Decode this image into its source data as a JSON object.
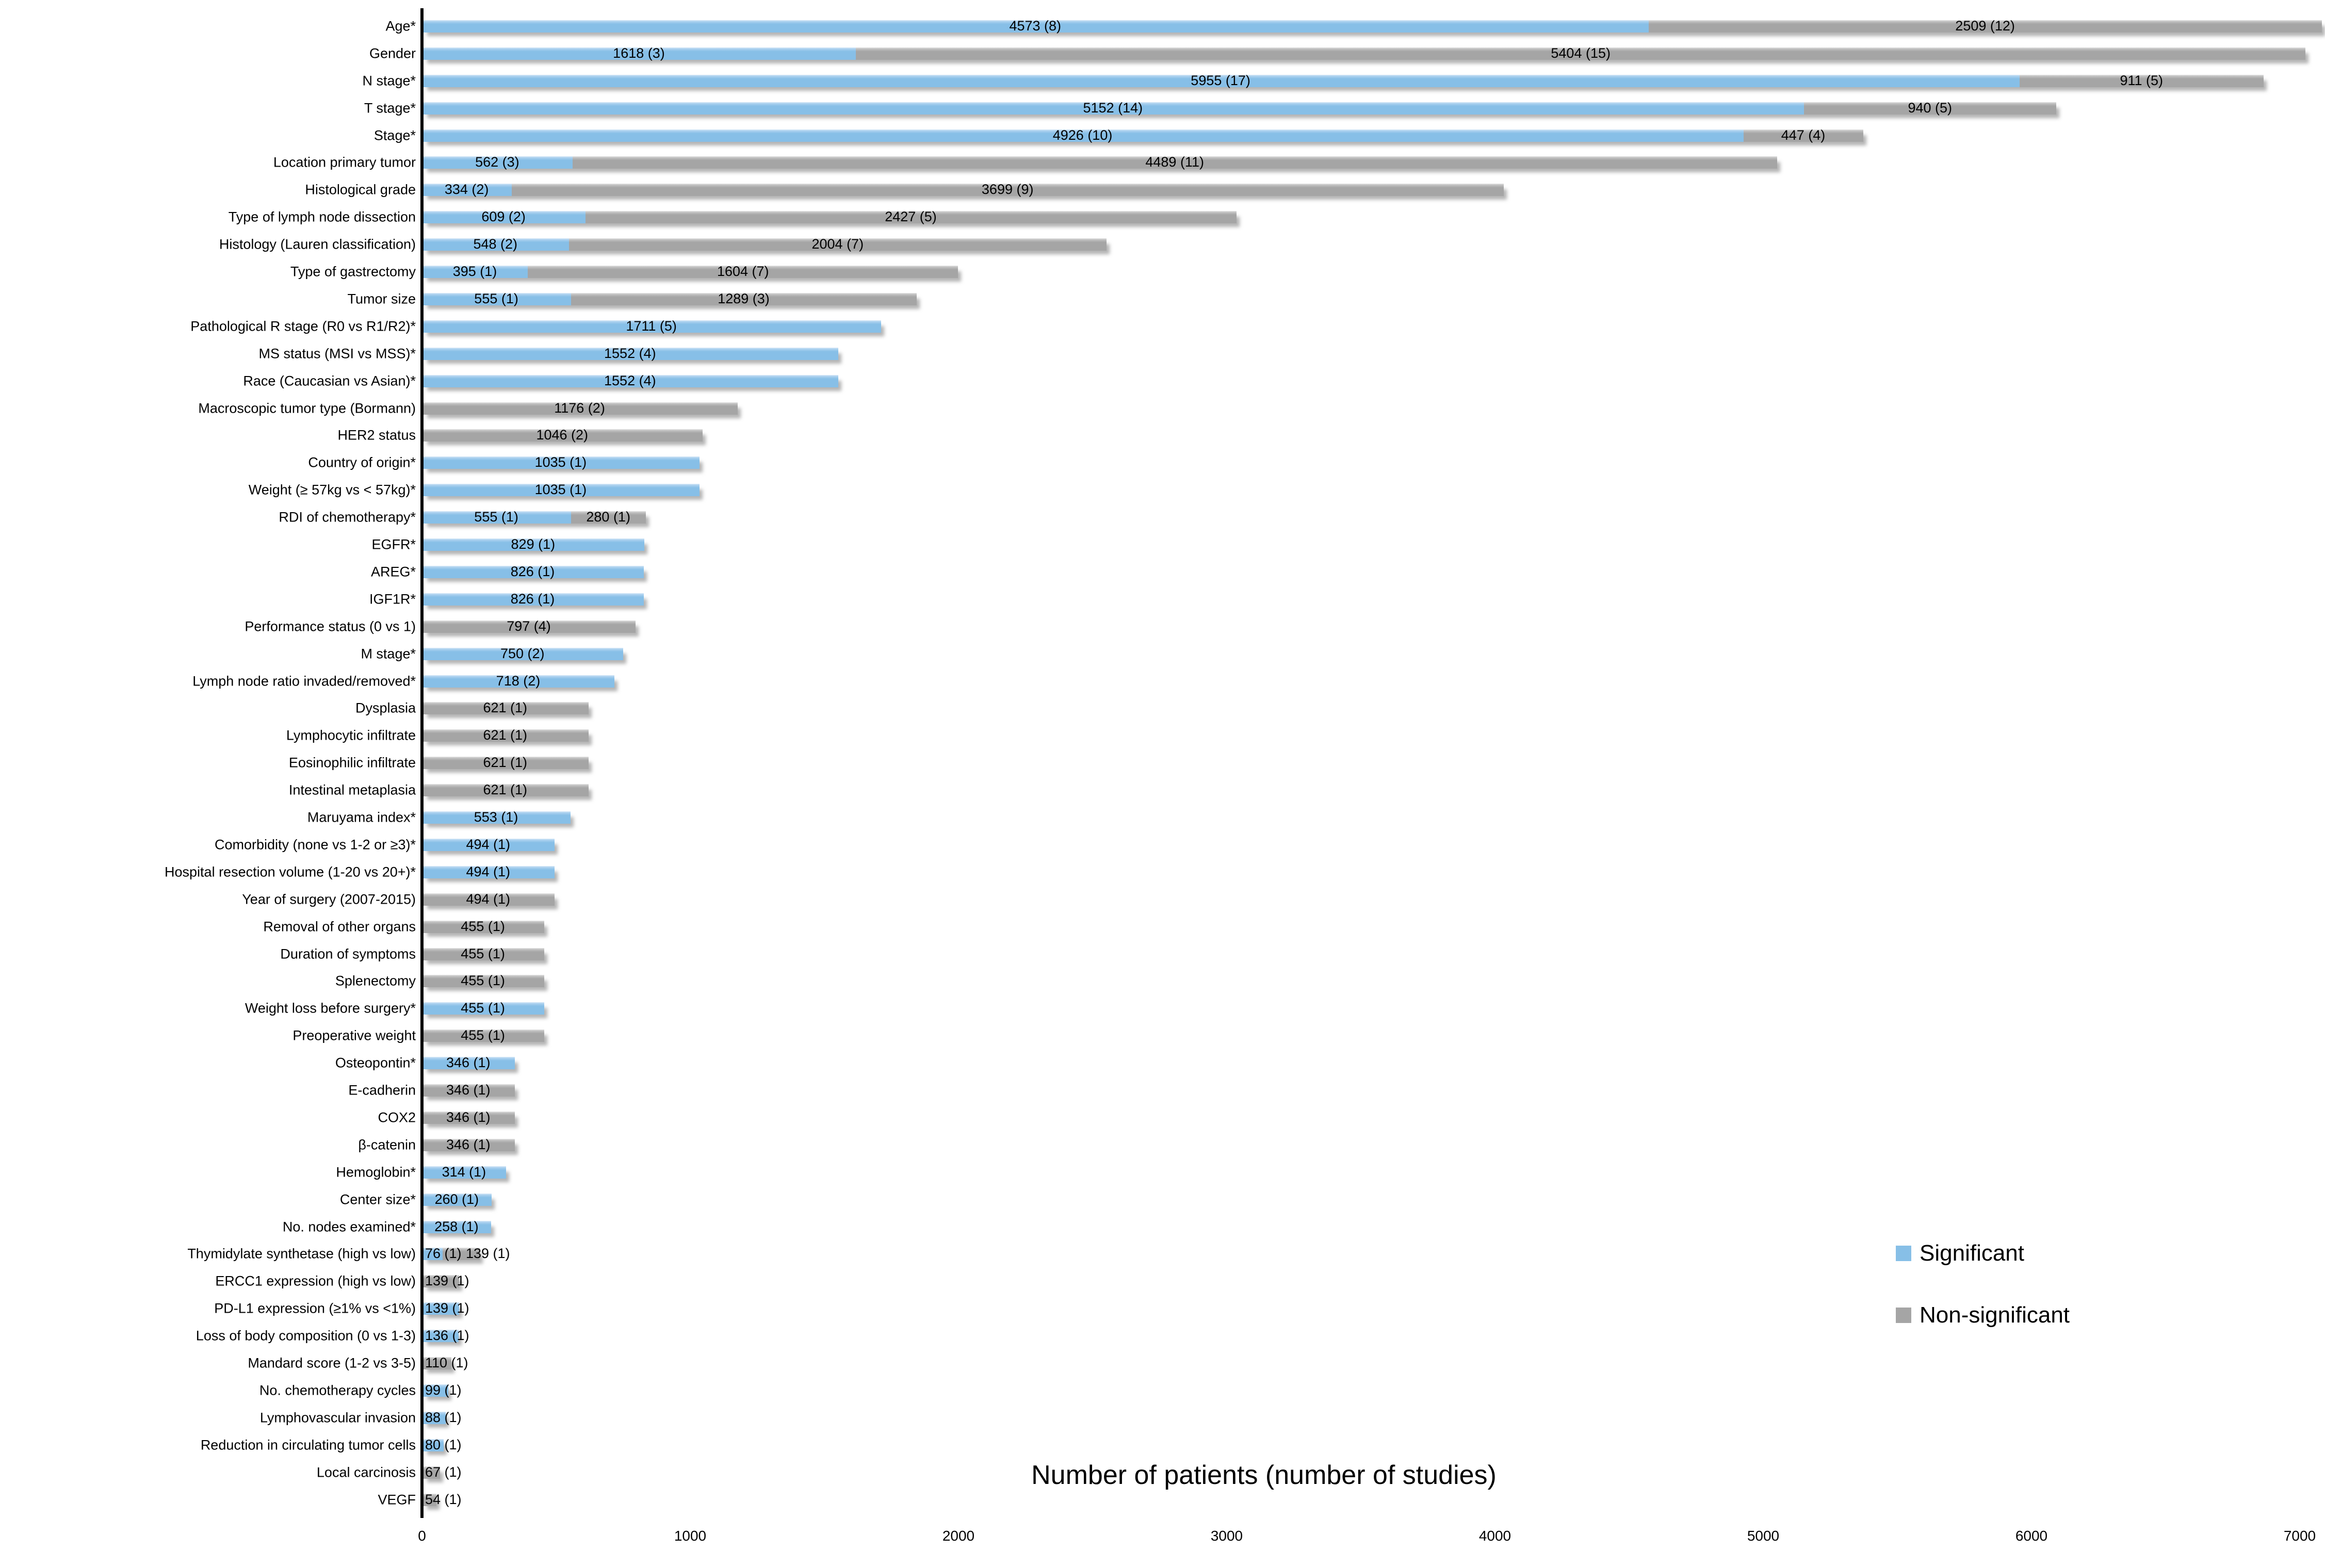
{
  "chart_data": {
    "type": "bar",
    "orientation": "horizontal",
    "stacked": true,
    "title": "",
    "xlabel": "Number of patients (number of studies)",
    "ylabel": "",
    "xlim": [
      0,
      7000
    ],
    "x_ticks": [
      0,
      1000,
      2000,
      3000,
      4000,
      5000,
      6000,
      7000
    ],
    "grid": false,
    "colors": {
      "significant": "#87BFE7",
      "non_significant": "#A5A5A5",
      "axis": "#000000"
    },
    "legend": {
      "position": "right-middle",
      "items": [
        {
          "label": "Significant",
          "color": "#87BFE7"
        },
        {
          "label": "Non-significant",
          "color": "#A5A5A5"
        }
      ]
    },
    "rows": [
      {
        "category": "Age*",
        "segments": [
          {
            "series": "significant",
            "value": 4573,
            "studies": 8,
            "label": "4573 (8)"
          },
          {
            "series": "non_significant",
            "value": 2509,
            "studies": 12,
            "label": "2509 (12)"
          }
        ]
      },
      {
        "category": "Gender",
        "segments": [
          {
            "series": "significant",
            "value": 1618,
            "studies": 3,
            "label": "1618 (3)"
          },
          {
            "series": "non_significant",
            "value": 5404,
            "studies": 15,
            "label": "5404 (15)"
          }
        ]
      },
      {
        "category": "N stage*",
        "segments": [
          {
            "series": "significant",
            "value": 5955,
            "studies": 17,
            "label": "5955 (17)"
          },
          {
            "series": "non_significant",
            "value": 911,
            "studies": 5,
            "label": "911 (5)"
          }
        ]
      },
      {
        "category": "T stage*",
        "segments": [
          {
            "series": "significant",
            "value": 5152,
            "studies": 14,
            "label": "5152 (14)"
          },
          {
            "series": "non_significant",
            "value": 940,
            "studies": 5,
            "label": "940 (5)"
          }
        ]
      },
      {
        "category": "Stage*",
        "segments": [
          {
            "series": "significant",
            "value": 4926,
            "studies": 10,
            "label": "4926 (10)"
          },
          {
            "series": "non_significant",
            "value": 447,
            "studies": 4,
            "label": "447 (4)"
          }
        ]
      },
      {
        "category": "Location primary tumor",
        "segments": [
          {
            "series": "significant",
            "value": 562,
            "studies": 3,
            "label": "562 (3)"
          },
          {
            "series": "non_significant",
            "value": 4489,
            "studies": 11,
            "label": "4489 (11)"
          }
        ]
      },
      {
        "category": "Histological grade",
        "segments": [
          {
            "series": "significant",
            "value": 334,
            "studies": 2,
            "label": "334 (2)"
          },
          {
            "series": "non_significant",
            "value": 3699,
            "studies": 9,
            "label": "3699 (9)"
          }
        ]
      },
      {
        "category": "Type of lymph node dissection",
        "segments": [
          {
            "series": "significant",
            "value": 609,
            "studies": 2,
            "label": "609 (2)"
          },
          {
            "series": "non_significant",
            "value": 2427,
            "studies": 5,
            "label": "2427 (5)"
          }
        ]
      },
      {
        "category": "Histology (Lauren classification)",
        "segments": [
          {
            "series": "significant",
            "value": 548,
            "studies": 2,
            "label": "548 (2)"
          },
          {
            "series": "non_significant",
            "value": 2004,
            "studies": 7,
            "label": "2004 (7)"
          }
        ]
      },
      {
        "category": "Type of gastrectomy",
        "segments": [
          {
            "series": "significant",
            "value": 395,
            "studies": 1,
            "label": "395 (1)"
          },
          {
            "series": "non_significant",
            "value": 1604,
            "studies": 7,
            "label": "1604 (7)"
          }
        ]
      },
      {
        "category": "Tumor size",
        "segments": [
          {
            "series": "significant",
            "value": 555,
            "studies": 1,
            "label": "555 (1)"
          },
          {
            "series": "non_significant",
            "value": 1289,
            "studies": 3,
            "label": "1289 (3)"
          }
        ]
      },
      {
        "category": "Pathological R stage (R0 vs R1/R2)*",
        "segments": [
          {
            "series": "significant",
            "value": 1711,
            "studies": 5,
            "label": "1711 (5)"
          }
        ]
      },
      {
        "category": "MS status (MSI vs MSS)*",
        "segments": [
          {
            "series": "significant",
            "value": 1552,
            "studies": 4,
            "label": "1552 (4)"
          }
        ]
      },
      {
        "category": "Race (Caucasian vs Asian)*",
        "segments": [
          {
            "series": "significant",
            "value": 1552,
            "studies": 4,
            "label": "1552 (4)"
          }
        ]
      },
      {
        "category": "Macroscopic tumor type (Bormann)",
        "segments": [
          {
            "series": "non_significant",
            "value": 1176,
            "studies": 2,
            "label": "1176 (2)"
          }
        ]
      },
      {
        "category": "HER2 status",
        "segments": [
          {
            "series": "non_significant",
            "value": 1046,
            "studies": 2,
            "label": "1046 (2)"
          }
        ]
      },
      {
        "category": "Country of origin*",
        "segments": [
          {
            "series": "significant",
            "value": 1035,
            "studies": 1,
            "label": "1035 (1)"
          }
        ]
      },
      {
        "category": "Weight (≥ 57kg vs < 57kg)*",
        "segments": [
          {
            "series": "significant",
            "value": 1035,
            "studies": 1,
            "label": "1035 (1)"
          }
        ]
      },
      {
        "category": "RDI of chemotherapy*",
        "segments": [
          {
            "series": "significant",
            "value": 555,
            "studies": 1,
            "label": "555 (1)"
          },
          {
            "series": "non_significant",
            "value": 280,
            "studies": 1,
            "label": "280 (1)"
          }
        ]
      },
      {
        "category": "EGFR*",
        "segments": [
          {
            "series": "significant",
            "value": 829,
            "studies": 1,
            "label": "829 (1)"
          }
        ]
      },
      {
        "category": "AREG*",
        "segments": [
          {
            "series": "significant",
            "value": 826,
            "studies": 1,
            "label": "826 (1)"
          }
        ]
      },
      {
        "category": "IGF1R*",
        "segments": [
          {
            "series": "significant",
            "value": 826,
            "studies": 1,
            "label": "826 (1)"
          }
        ]
      },
      {
        "category": "Performance status (0 vs 1)",
        "segments": [
          {
            "series": "non_significant",
            "value": 797,
            "studies": 4,
            "label": "797 (4)"
          }
        ]
      },
      {
        "category": "M stage*",
        "segments": [
          {
            "series": "significant",
            "value": 750,
            "studies": 2,
            "label": "750 (2)"
          }
        ]
      },
      {
        "category": "Lymph node ratio invaded/removed*",
        "segments": [
          {
            "series": "significant",
            "value": 718,
            "studies": 2,
            "label": "718 (2)"
          }
        ]
      },
      {
        "category": "Dysplasia",
        "segments": [
          {
            "series": "non_significant",
            "value": 621,
            "studies": 1,
            "label": "621 (1)"
          }
        ]
      },
      {
        "category": "Lymphocytic infiltrate",
        "segments": [
          {
            "series": "non_significant",
            "value": 621,
            "studies": 1,
            "label": "621 (1)"
          }
        ]
      },
      {
        "category": "Eosinophilic infiltrate",
        "segments": [
          {
            "series": "non_significant",
            "value": 621,
            "studies": 1,
            "label": "621 (1)"
          }
        ]
      },
      {
        "category": "Intestinal metaplasia",
        "segments": [
          {
            "series": "non_significant",
            "value": 621,
            "studies": 1,
            "label": "621 (1)"
          }
        ]
      },
      {
        "category": "Maruyama index*",
        "segments": [
          {
            "series": "significant",
            "value": 553,
            "studies": 1,
            "label": "553 (1)"
          }
        ]
      },
      {
        "category": "Comorbidity (none vs 1-2 or ≥3)*",
        "segments": [
          {
            "series": "significant",
            "value": 494,
            "studies": 1,
            "label": "494 (1)"
          }
        ]
      },
      {
        "category": "Hospital resection volume (1-20 vs 20+)*",
        "segments": [
          {
            "series": "significant",
            "value": 494,
            "studies": 1,
            "label": "494 (1)"
          }
        ]
      },
      {
        "category": "Year of surgery (2007-2015)",
        "segments": [
          {
            "series": "non_significant",
            "value": 494,
            "studies": 1,
            "label": "494 (1)"
          }
        ]
      },
      {
        "category": "Removal of other organs",
        "segments": [
          {
            "series": "non_significant",
            "value": 455,
            "studies": 1,
            "label": "455 (1)"
          }
        ]
      },
      {
        "category": "Duration of symptoms",
        "segments": [
          {
            "series": "non_significant",
            "value": 455,
            "studies": 1,
            "label": "455 (1)"
          }
        ]
      },
      {
        "category": "Splenectomy",
        "segments": [
          {
            "series": "non_significant",
            "value": 455,
            "studies": 1,
            "label": "455 (1)"
          }
        ]
      },
      {
        "category": "Weight loss before surgery*",
        "segments": [
          {
            "series": "significant",
            "value": 455,
            "studies": 1,
            "label": "455 (1)"
          }
        ]
      },
      {
        "category": "Preoperative weight",
        "segments": [
          {
            "series": "non_significant",
            "value": 455,
            "studies": 1,
            "label": "455 (1)"
          }
        ]
      },
      {
        "category": "Osteopontin*",
        "segments": [
          {
            "series": "significant",
            "value": 346,
            "studies": 1,
            "label": "346 (1)"
          }
        ]
      },
      {
        "category": "E-cadherin",
        "segments": [
          {
            "series": "non_significant",
            "value": 346,
            "studies": 1,
            "label": "346 (1)"
          }
        ]
      },
      {
        "category": "COX2",
        "segments": [
          {
            "series": "non_significant",
            "value": 346,
            "studies": 1,
            "label": "346 (1)"
          }
        ]
      },
      {
        "category": "β-catenin",
        "segments": [
          {
            "series": "non_significant",
            "value": 346,
            "studies": 1,
            "label": "346 (1)"
          }
        ]
      },
      {
        "category": "Hemoglobin*",
        "segments": [
          {
            "series": "significant",
            "value": 314,
            "studies": 1,
            "label": "314 (1)"
          }
        ]
      },
      {
        "category": "Center size*",
        "segments": [
          {
            "series": "significant",
            "value": 260,
            "studies": 1,
            "label": "260 (1)"
          }
        ]
      },
      {
        "category": "No. nodes examined*",
        "segments": [
          {
            "series": "significant",
            "value": 258,
            "studies": 1,
            "label": "258 (1)"
          }
        ]
      },
      {
        "category": "Thymidylate synthetase (high vs low)",
        "segments": [
          {
            "series": "significant",
            "value": 76,
            "studies": 1,
            "label": "76 (1)"
          },
          {
            "series": "non_significant",
            "value": 139,
            "studies": 1,
            "label": "139 (1)"
          }
        ]
      },
      {
        "category": "ERCC1 expression (high vs low)",
        "segments": [
          {
            "series": "non_significant",
            "value": 139,
            "studies": 1,
            "label": "139 (1)"
          }
        ]
      },
      {
        "category": "PD-L1 expression (≥1% vs <1%)",
        "segments": [
          {
            "series": "significant",
            "value": 139,
            "studies": 1,
            "label": "139 (1)"
          }
        ]
      },
      {
        "category": "Loss of body composition (0 vs 1-3)",
        "segments": [
          {
            "series": "significant",
            "value": 136,
            "studies": 1,
            "label": "136 (1)"
          }
        ]
      },
      {
        "category": "Mandard score (1-2 vs 3-5)",
        "segments": [
          {
            "series": "non_significant",
            "value": 110,
            "studies": 1,
            "label": "110 (1)"
          }
        ]
      },
      {
        "category": "No. chemotherapy cycles",
        "segments": [
          {
            "series": "significant",
            "value": 99,
            "studies": 1,
            "label": "99 (1)"
          }
        ]
      },
      {
        "category": "Lymphovascular invasion",
        "segments": [
          {
            "series": "significant",
            "value": 88,
            "studies": 1,
            "label": "88 (1)"
          }
        ]
      },
      {
        "category": "Reduction in circulating tumor cells",
        "segments": [
          {
            "series": "significant",
            "value": 80,
            "studies": 1,
            "label": "80 (1)"
          }
        ]
      },
      {
        "category": "Local carcinosis",
        "segments": [
          {
            "series": "non_significant",
            "value": 67,
            "studies": 1,
            "label": "67 (1)"
          }
        ]
      },
      {
        "category": "VEGF",
        "segments": [
          {
            "series": "non_significant",
            "value": 54,
            "studies": 1,
            "label": "54 (1)"
          }
        ]
      }
    ]
  }
}
